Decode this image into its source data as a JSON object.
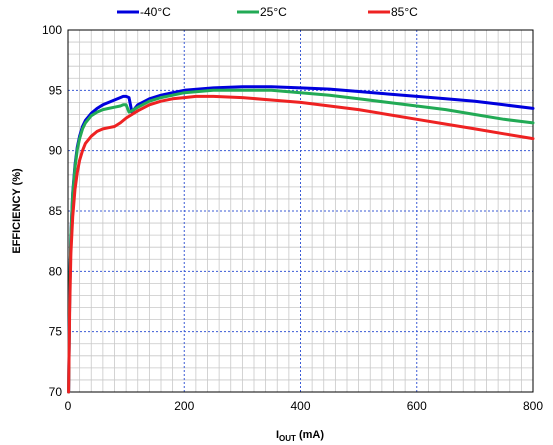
{
  "chart_data": {
    "type": "line",
    "xlabel_main": "I",
    "xlabel_sub": "OUT",
    "xlabel_unit": " (mA)",
    "ylabel": "EFFICIENCY (%)",
    "xlim": [
      0,
      800
    ],
    "ylim": [
      70,
      100
    ],
    "x_ticks": [
      0,
      200,
      400,
      600,
      800
    ],
    "y_ticks": [
      70,
      75,
      80,
      85,
      90,
      95,
      100
    ],
    "x_minor_step": 20,
    "y_minor_step": 1,
    "grid": true,
    "legend_position": "top",
    "series": [
      {
        "name": "-40°C",
        "color": "#0000dd",
        "x": [
          1,
          3,
          5,
          8,
          12,
          16,
          20,
          25,
          30,
          40,
          50,
          60,
          70,
          80,
          90,
          95,
          100,
          105,
          110,
          120,
          140,
          160,
          180,
          200,
          250,
          300,
          350,
          400,
          450,
          500,
          550,
          600,
          650,
          700,
          750,
          800
        ],
        "y": [
          70,
          78,
          83,
          86.5,
          88.8,
          90.3,
          91.2,
          92,
          92.5,
          93.1,
          93.5,
          93.8,
          94,
          94.2,
          94.4,
          94.5,
          94.5,
          94.4,
          93.2,
          93.8,
          94.3,
          94.6,
          94.8,
          95,
          95.2,
          95.3,
          95.3,
          95.2,
          95.1,
          94.9,
          94.7,
          94.5,
          94.3,
          94.1,
          93.8,
          93.5
        ]
      },
      {
        "name": "25°C",
        "color": "#22aa55",
        "x": [
          1,
          3,
          5,
          8,
          12,
          16,
          20,
          25,
          30,
          40,
          50,
          60,
          70,
          80,
          90,
          95,
          100,
          105,
          110,
          120,
          140,
          160,
          180,
          200,
          250,
          300,
          350,
          400,
          450,
          500,
          550,
          600,
          650,
          700,
          750,
          800
        ],
        "y": [
          70,
          78,
          83,
          86.3,
          88.6,
          90.1,
          91,
          91.8,
          92.3,
          92.9,
          93.2,
          93.4,
          93.5,
          93.6,
          93.7,
          93.8,
          93.8,
          93.2,
          93.3,
          93.6,
          94.1,
          94.4,
          94.6,
          94.8,
          95,
          95,
          95,
          94.8,
          94.6,
          94.3,
          94,
          93.7,
          93.4,
          93,
          92.6,
          92.3
        ]
      },
      {
        "name": "85°C",
        "color": "#ee2222",
        "x": [
          1,
          3,
          5,
          8,
          12,
          16,
          20,
          25,
          30,
          40,
          50,
          60,
          70,
          80,
          90,
          100,
          110,
          120,
          140,
          160,
          180,
          200,
          220,
          250,
          300,
          350,
          400,
          450,
          500,
          550,
          600,
          650,
          700,
          750,
          800
        ],
        "y": [
          70,
          77,
          81.5,
          84.5,
          86.8,
          88.2,
          89.2,
          90,
          90.6,
          91.2,
          91.6,
          91.8,
          91.9,
          92,
          92.3,
          92.7,
          93,
          93.3,
          93.8,
          94.1,
          94.3,
          94.4,
          94.5,
          94.5,
          94.4,
          94.2,
          94,
          93.7,
          93.4,
          93,
          92.6,
          92.2,
          91.8,
          91.4,
          91
        ]
      }
    ]
  }
}
